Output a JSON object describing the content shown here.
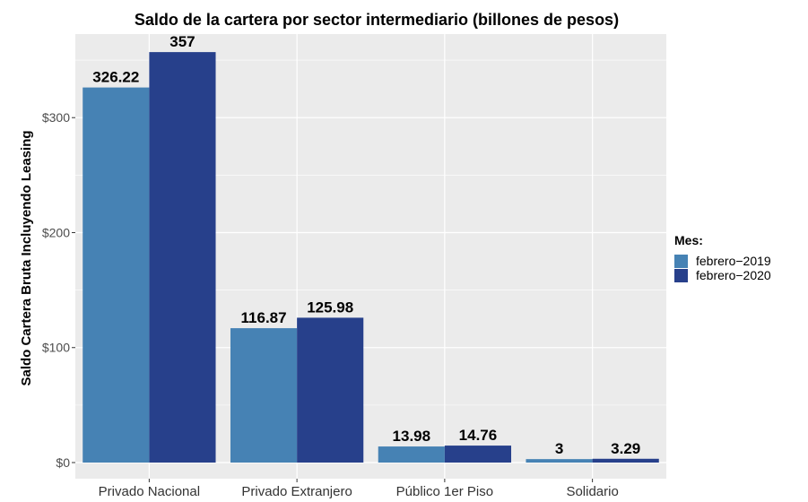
{
  "chart_data": {
    "type": "bar",
    "title": "Saldo de la cartera por sector intermediario (billones de pesos)",
    "xlabel": "",
    "ylabel": "Saldo Cartera Bruta Incluyendo Leasing",
    "categories": [
      "Privado Nacional",
      "Privado Extranjero",
      "Público 1er Piso",
      "Solidario"
    ],
    "series": [
      {
        "name": "febrero−2019",
        "values": [
          326.22,
          116.87,
          13.98,
          3
        ],
        "labels": [
          "326.22",
          "116.87",
          "13.98",
          "3"
        ],
        "color": "#4682b4"
      },
      {
        "name": "febrero−2020",
        "values": [
          357,
          125.98,
          14.76,
          3.29
        ],
        "labels": [
          "357",
          "125.98",
          "14.76",
          "3.29"
        ],
        "color": "#27408b"
      }
    ],
    "ylim": [
      0,
      370
    ],
    "yticks": [
      0,
      100,
      200,
      300
    ],
    "ytick_labels": [
      "$0",
      "$100",
      "$200",
      "$300"
    ],
    "grid": true,
    "panel_background": "#ebebeb",
    "legend": {
      "title": "Mes:",
      "position": "right"
    }
  }
}
